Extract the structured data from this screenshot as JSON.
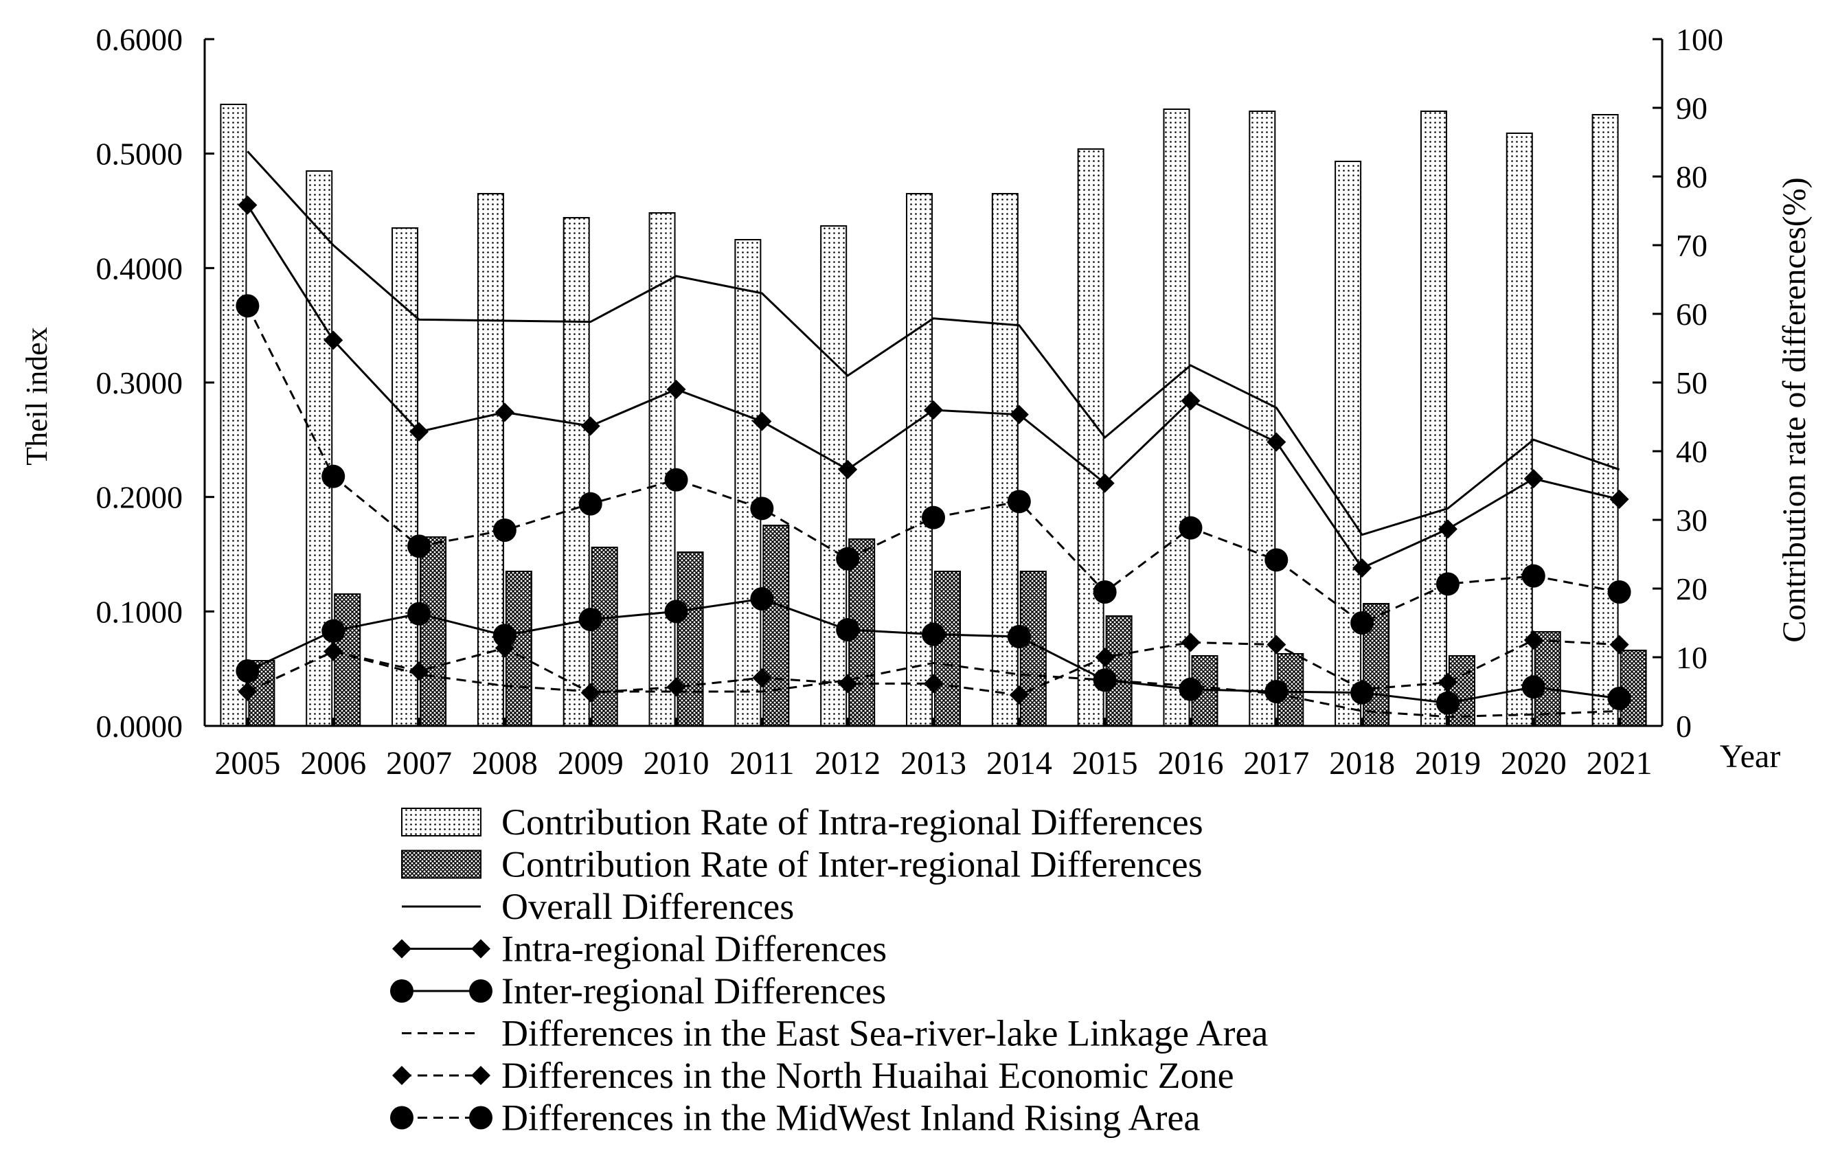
{
  "chart_data": {
    "type": "bar+line",
    "xlabel": "Year",
    "ylabel_left": "Theil index",
    "ylabel_right": "Contribution rate of differences(%)",
    "left_axis": {
      "ylim": [
        0,
        0.6
      ],
      "ticks": [
        "0.0000",
        "0.1000",
        "0.2000",
        "0.3000",
        "0.4000",
        "0.5000",
        "0.6000"
      ]
    },
    "right_axis": {
      "ylim": [
        0,
        100
      ],
      "ticks": [
        "0",
        "10",
        "20",
        "30",
        "40",
        "50",
        "60",
        "70",
        "80",
        "90",
        "100"
      ]
    },
    "categories": [
      "2005",
      "2006",
      "2007",
      "2008",
      "2009",
      "2010",
      "2011",
      "2012",
      "2013",
      "2014",
      "2015",
      "2016",
      "2017",
      "2018",
      "2019",
      "2020",
      "2021"
    ],
    "bar_series": [
      {
        "name": "Contribution Rate of Intra-regional Differences",
        "pattern": "dots",
        "axis": "right",
        "values": [
          90.5,
          80.8,
          72.5,
          77.5,
          74.0,
          74.7,
          70.8,
          72.8,
          77.5,
          77.5,
          84.0,
          89.8,
          89.5,
          82.2,
          89.5,
          86.3,
          89.0
        ]
      },
      {
        "name": "Contribution Rate of Inter-regional Differences",
        "pattern": "crosshatch",
        "axis": "right",
        "values": [
          9.5,
          19.2,
          27.5,
          22.5,
          26.0,
          25.3,
          29.2,
          27.2,
          22.5,
          22.5,
          16.0,
          10.2,
          10.5,
          17.8,
          10.2,
          13.7,
          11.0
        ]
      }
    ],
    "line_series": [
      {
        "name": "Overall Differences",
        "dash": "solid",
        "marker": "none",
        "axis": "left",
        "values": [
          0.502,
          0.42,
          0.355,
          0.354,
          0.353,
          0.393,
          0.378,
          0.306,
          0.356,
          0.35,
          0.252,
          0.315,
          0.278,
          0.167,
          0.19,
          0.25,
          0.224
        ]
      },
      {
        "name": "Intra-regional Differences",
        "dash": "solid",
        "marker": "diamond",
        "axis": "left",
        "values": [
          0.455,
          0.337,
          0.257,
          0.274,
          0.262,
          0.294,
          0.266,
          0.224,
          0.276,
          0.272,
          0.212,
          0.284,
          0.248,
          0.138,
          0.172,
          0.216,
          0.198
        ]
      },
      {
        "name": "Inter-regional Differences",
        "dash": "solid",
        "marker": "circle",
        "axis": "left",
        "values": [
          0.048,
          0.083,
          0.098,
          0.079,
          0.093,
          0.1,
          0.111,
          0.084,
          0.08,
          0.078,
          0.04,
          0.032,
          0.03,
          0.029,
          0.02,
          0.034,
          0.024
        ]
      },
      {
        "name": "Differences in the East Sea-river-lake Linkage Area",
        "dash": "dashed",
        "marker": "none",
        "axis": "left",
        "values": [
          0.03,
          0.065,
          0.045,
          0.035,
          0.03,
          0.03,
          0.03,
          0.04,
          0.055,
          0.045,
          0.04,
          0.035,
          0.028,
          0.013,
          0.008,
          0.01,
          0.013
        ]
      },
      {
        "name": "Differences in the North Huaihai Economic Zone",
        "dash": "dashed",
        "marker": "diamond",
        "axis": "left",
        "values": [
          0.03,
          0.065,
          0.048,
          0.068,
          0.029,
          0.034,
          0.042,
          0.037,
          0.037,
          0.027,
          0.06,
          0.073,
          0.071,
          0.032,
          0.038,
          0.075,
          0.071
        ]
      },
      {
        "name": "Differences in the MidWest Inland Rising Area",
        "dash": "dashed",
        "marker": "circle",
        "axis": "left",
        "values": [
          0.367,
          0.218,
          0.157,
          0.171,
          0.194,
          0.215,
          0.19,
          0.146,
          0.182,
          0.196,
          0.117,
          0.173,
          0.145,
          0.09,
          0.124,
          0.131,
          0.117
        ]
      }
    ]
  }
}
